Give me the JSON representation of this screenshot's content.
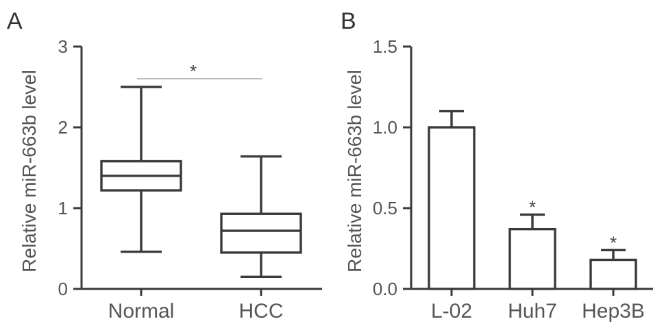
{
  "panels": [
    {
      "letter": "A",
      "ylabel": "Relative miR-663b level",
      "yticks": [
        "0",
        "1",
        "2",
        "3"
      ],
      "significance": "*"
    },
    {
      "letter": "B",
      "ylabel": "Relative miR-663b level",
      "yticks": [
        "0.0",
        "0.5",
        "1.0",
        "1.5"
      ],
      "significance": "*"
    }
  ],
  "chart_data": [
    {
      "type": "box",
      "title": "",
      "ylabel": "Relative miR-663b level",
      "ylim": [
        0,
        3
      ],
      "categories": [
        "Normal",
        "HCC"
      ],
      "boxes": [
        {
          "name": "Normal",
          "min": 0.46,
          "q1": 1.22,
          "median": 1.4,
          "q3": 1.58,
          "max": 2.5
        },
        {
          "name": "HCC",
          "min": 0.15,
          "q1": 0.45,
          "median": 0.72,
          "q3": 0.93,
          "max": 1.64
        }
      ],
      "annotations": [
        {
          "text": "*",
          "between": [
            "Normal",
            "HCC"
          ]
        }
      ]
    },
    {
      "type": "bar",
      "title": "",
      "ylabel": "Relative miR-663b level",
      "ylim": [
        0,
        1.5
      ],
      "categories": [
        "L-02",
        "Huh7",
        "Hep3B"
      ],
      "values": [
        1.0,
        0.37,
        0.18
      ],
      "errors": [
        0.1,
        0.09,
        0.06
      ],
      "annotations": [
        "",
        "*",
        "*"
      ]
    }
  ]
}
